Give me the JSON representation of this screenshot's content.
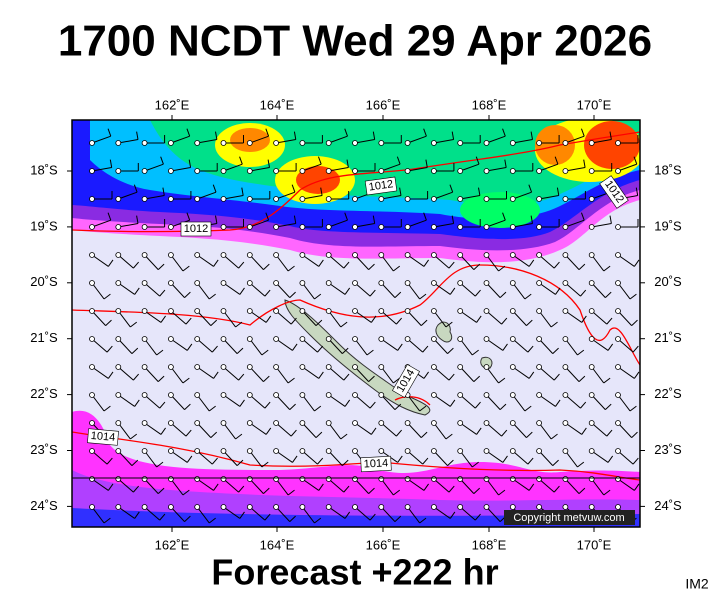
{
  "header": {
    "title": "1700 NCDT Wed 29 Apr 2026"
  },
  "map": {
    "lon_labels": [
      "162˚E",
      "164˚E",
      "166˚E",
      "168˚E",
      "170˚E"
    ],
    "lat_labels": [
      "18˚S",
      "19˚S",
      "20˚S",
      "21˚S",
      "22˚S",
      "23˚S",
      "24˚S"
    ],
    "isobar_labels": [
      "1012",
      "1012",
      "1012",
      "1014",
      "1014",
      "1014"
    ],
    "copyright": "Copyright metvuw.com"
  },
  "footer": {
    "title": "Forecast +222 hr",
    "corner": "IM2"
  }
}
